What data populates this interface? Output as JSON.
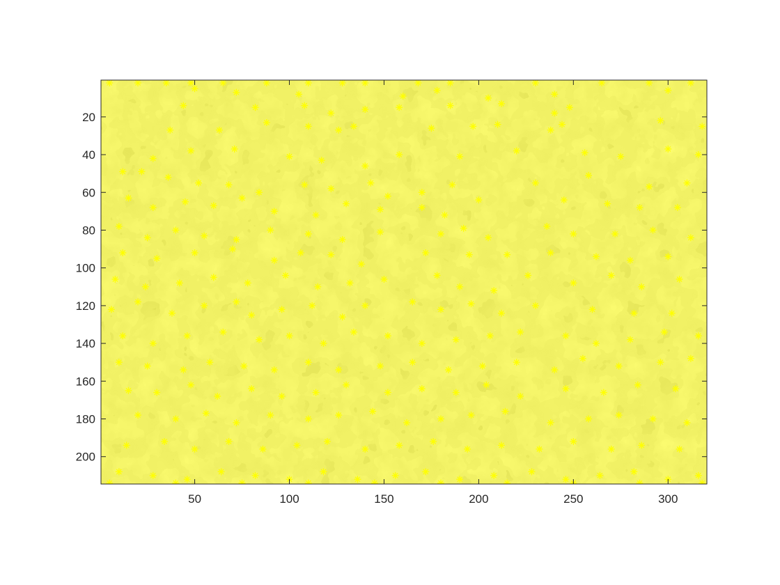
{
  "chart_data": {
    "type": "scatter",
    "title": "",
    "xlabel": "",
    "ylabel": "",
    "background": "grayscale image (blood cell micrograph)",
    "x_axis": {
      "ticks": [
        50,
        100,
        150,
        200,
        250,
        300
      ],
      "tick_labels": [
        "50",
        "100",
        "150",
        "200",
        "250",
        "300"
      ],
      "range": [
        0.5,
        320.5
      ]
    },
    "y_axis": {
      "ticks": [
        20,
        40,
        60,
        80,
        100,
        120,
        140,
        160,
        180,
        200
      ],
      "tick_labels": [
        "20",
        "40",
        "60",
        "80",
        "100",
        "120",
        "140",
        "160",
        "180",
        "200"
      ],
      "range": [
        0.5,
        214.5
      ],
      "reversed": true
    },
    "grid": false,
    "legend": "none",
    "marker": {
      "shape": "asterisk",
      "color": "#ffff00"
    },
    "series": [
      {
        "points": [
          [
            5,
            2
          ],
          [
            20,
            2
          ],
          [
            35,
            2
          ],
          [
            48,
            2
          ],
          [
            65,
            2
          ],
          [
            88,
            2
          ],
          [
            110,
            2
          ],
          [
            128,
            2
          ],
          [
            140,
            2
          ],
          [
            168,
            2
          ],
          [
            185,
            2
          ],
          [
            230,
            2
          ],
          [
            265,
            2
          ],
          [
            290,
            2
          ],
          [
            312,
            2
          ],
          [
            50,
            5
          ],
          [
            72,
            7
          ],
          [
            105,
            8
          ],
          [
            160,
            9
          ],
          [
            178,
            6
          ],
          [
            205,
            10
          ],
          [
            240,
            8
          ],
          [
            300,
            6
          ],
          [
            44,
            14
          ],
          [
            82,
            15
          ],
          [
            108,
            14
          ],
          [
            122,
            18
          ],
          [
            140,
            16
          ],
          [
            158,
            15
          ],
          [
            185,
            14
          ],
          [
            212,
            13
          ],
          [
            240,
            18
          ],
          [
            248,
            15
          ],
          [
            37,
            27
          ],
          [
            63,
            27
          ],
          [
            88,
            23
          ],
          [
            110,
            25
          ],
          [
            126,
            27
          ],
          [
            134,
            25
          ],
          [
            175,
            26
          ],
          [
            197,
            25
          ],
          [
            210,
            24
          ],
          [
            238,
            27
          ],
          [
            244,
            24
          ],
          [
            296,
            22
          ],
          [
            318,
            25
          ],
          [
            28,
            42
          ],
          [
            48,
            38
          ],
          [
            71,
            37
          ],
          [
            100,
            41
          ],
          [
            117,
            43
          ],
          [
            140,
            46
          ],
          [
            158,
            40
          ],
          [
            190,
            41
          ],
          [
            220,
            38
          ],
          [
            256,
            39
          ],
          [
            275,
            41
          ],
          [
            300,
            37
          ],
          [
            316,
            40
          ],
          [
            12,
            49
          ],
          [
            22,
            49
          ],
          [
            36,
            52
          ],
          [
            52,
            55
          ],
          [
            68,
            56
          ],
          [
            84,
            60
          ],
          [
            108,
            56
          ],
          [
            122,
            58
          ],
          [
            143,
            55
          ],
          [
            152,
            62
          ],
          [
            170,
            60
          ],
          [
            186,
            56
          ],
          [
            230,
            55
          ],
          [
            258,
            51
          ],
          [
            290,
            57
          ],
          [
            310,
            55
          ],
          [
            15,
            63
          ],
          [
            28,
            68
          ],
          [
            45,
            65
          ],
          [
            60,
            67
          ],
          [
            75,
            63
          ],
          [
            92,
            70
          ],
          [
            114,
            72
          ],
          [
            130,
            66
          ],
          [
            148,
            69
          ],
          [
            170,
            68
          ],
          [
            182,
            72
          ],
          [
            200,
            64
          ],
          [
            245,
            64
          ],
          [
            268,
            66
          ],
          [
            285,
            68
          ],
          [
            305,
            68
          ],
          [
            10,
            78
          ],
          [
            25,
            84
          ],
          [
            40,
            80
          ],
          [
            55,
            83
          ],
          [
            72,
            85
          ],
          [
            90,
            80
          ],
          [
            110,
            82
          ],
          [
            128,
            85
          ],
          [
            148,
            81
          ],
          [
            180,
            82
          ],
          [
            192,
            79
          ],
          [
            205,
            84
          ],
          [
            236,
            78
          ],
          [
            250,
            82
          ],
          [
            272,
            82
          ],
          [
            292,
            80
          ],
          [
            312,
            84
          ],
          [
            12,
            92
          ],
          [
            30,
            95
          ],
          [
            50,
            92
          ],
          [
            70,
            90
          ],
          [
            92,
            96
          ],
          [
            106,
            92
          ],
          [
            122,
            93
          ],
          [
            138,
            98
          ],
          [
            172,
            92
          ],
          [
            195,
            93
          ],
          [
            215,
            93
          ],
          [
            238,
            92
          ],
          [
            262,
            94
          ],
          [
            280,
            96
          ],
          [
            300,
            94
          ],
          [
            8,
            106
          ],
          [
            24,
            110
          ],
          [
            42,
            108
          ],
          [
            60,
            105
          ],
          [
            78,
            108
          ],
          [
            98,
            104
          ],
          [
            115,
            110
          ],
          [
            132,
            108
          ],
          [
            150,
            106
          ],
          [
            178,
            104
          ],
          [
            190,
            110
          ],
          [
            208,
            112
          ],
          [
            226,
            104
          ],
          [
            250,
            108
          ],
          [
            270,
            104
          ],
          [
            286,
            110
          ],
          [
            306,
            106
          ],
          [
            6,
            122
          ],
          [
            20,
            118
          ],
          [
            38,
            124
          ],
          [
            55,
            120
          ],
          [
            72,
            118
          ],
          [
            80,
            125
          ],
          [
            96,
            122
          ],
          [
            112,
            120
          ],
          [
            128,
            126
          ],
          [
            140,
            120
          ],
          [
            165,
            118
          ],
          [
            180,
            122
          ],
          [
            196,
            119
          ],
          [
            212,
            124
          ],
          [
            230,
            120
          ],
          [
            260,
            122
          ],
          [
            282,
            124
          ],
          [
            302,
            124
          ],
          [
            12,
            136
          ],
          [
            28,
            140
          ],
          [
            46,
            136
          ],
          [
            65,
            134
          ],
          [
            84,
            138
          ],
          [
            100,
            136
          ],
          [
            118,
            140
          ],
          [
            134,
            134
          ],
          [
            152,
            136
          ],
          [
            170,
            140
          ],
          [
            188,
            138
          ],
          [
            206,
            136
          ],
          [
            222,
            134
          ],
          [
            246,
            136
          ],
          [
            262,
            140
          ],
          [
            280,
            138
          ],
          [
            298,
            134
          ],
          [
            316,
            136
          ],
          [
            10,
            150
          ],
          [
            25,
            152
          ],
          [
            44,
            154
          ],
          [
            58,
            150
          ],
          [
            76,
            152
          ],
          [
            92,
            154
          ],
          [
            110,
            150
          ],
          [
            126,
            154
          ],
          [
            148,
            152
          ],
          [
            165,
            150
          ],
          [
            184,
            154
          ],
          [
            202,
            152
          ],
          [
            220,
            150
          ],
          [
            240,
            154
          ],
          [
            255,
            148
          ],
          [
            274,
            152
          ],
          [
            296,
            150
          ],
          [
            312,
            148
          ],
          [
            15,
            165
          ],
          [
            30,
            166
          ],
          [
            48,
            162
          ],
          [
            62,
            168
          ],
          [
            80,
            164
          ],
          [
            96,
            168
          ],
          [
            114,
            166
          ],
          [
            130,
            162
          ],
          [
            152,
            166
          ],
          [
            170,
            164
          ],
          [
            188,
            166
          ],
          [
            204,
            162
          ],
          [
            222,
            168
          ],
          [
            246,
            164
          ],
          [
            266,
            166
          ],
          [
            284,
            162
          ],
          [
            304,
            164
          ],
          [
            20,
            178
          ],
          [
            40,
            180
          ],
          [
            56,
            177
          ],
          [
            72,
            182
          ],
          [
            90,
            178
          ],
          [
            110,
            180
          ],
          [
            126,
            178
          ],
          [
            144,
            176
          ],
          [
            162,
            182
          ],
          [
            180,
            180
          ],
          [
            196,
            178
          ],
          [
            214,
            176
          ],
          [
            238,
            182
          ],
          [
            258,
            180
          ],
          [
            274,
            178
          ],
          [
            292,
            180
          ],
          [
            310,
            182
          ],
          [
            14,
            194
          ],
          [
            34,
            192
          ],
          [
            50,
            196
          ],
          [
            68,
            192
          ],
          [
            86,
            196
          ],
          [
            104,
            194
          ],
          [
            120,
            192
          ],
          [
            140,
            196
          ],
          [
            158,
            194
          ],
          [
            176,
            192
          ],
          [
            194,
            196
          ],
          [
            212,
            194
          ],
          [
            232,
            196
          ],
          [
            250,
            192
          ],
          [
            270,
            196
          ],
          [
            286,
            194
          ],
          [
            306,
            196
          ],
          [
            10,
            208
          ],
          [
            28,
            210
          ],
          [
            46,
            212
          ],
          [
            64,
            208
          ],
          [
            82,
            210
          ],
          [
            100,
            212
          ],
          [
            118,
            208
          ],
          [
            136,
            212
          ],
          [
            156,
            210
          ],
          [
            172,
            208
          ],
          [
            190,
            212
          ],
          [
            208,
            210
          ],
          [
            228,
            208
          ],
          [
            246,
            212
          ],
          [
            264,
            210
          ],
          [
            282,
            208
          ],
          [
            300,
            212
          ],
          [
            316,
            210
          ],
          [
            5,
            214
          ],
          [
            40,
            214
          ],
          [
            75,
            214
          ],
          [
            110,
            214
          ],
          [
            145,
            214
          ],
          [
            180,
            214
          ],
          [
            215,
            214
          ],
          [
            250,
            214
          ],
          [
            285,
            214
          ],
          [
            318,
            214
          ]
        ]
      }
    ]
  }
}
